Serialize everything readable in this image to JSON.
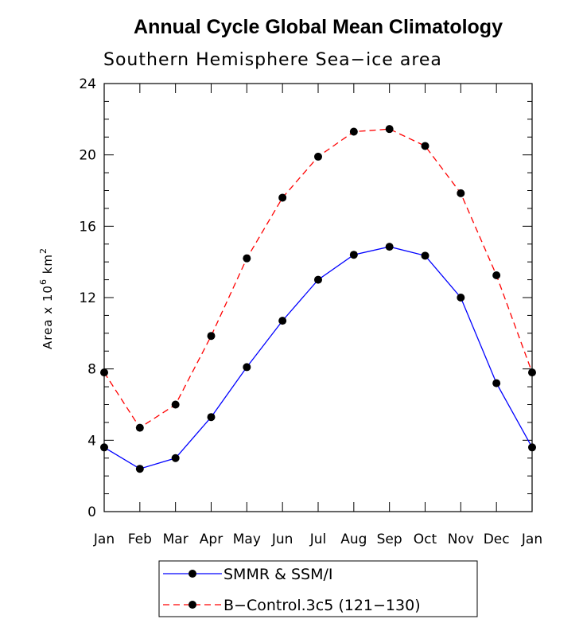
{
  "chart_data": {
    "type": "line",
    "title": "Annual Cycle Global Mean Climatology",
    "subtitle": "Southern Hemisphere Sea−ice area",
    "ylabel": {
      "base": "Area x 10",
      "exp1": "6",
      "unit": " km",
      "exp2": "2"
    },
    "xlabel": "",
    "categories": [
      "Jan",
      "Feb",
      "Mar",
      "Apr",
      "May",
      "Jun",
      "Jul",
      "Aug",
      "Sep",
      "Oct",
      "Nov",
      "Dec",
      "Jan"
    ],
    "ylim": [
      0,
      24
    ],
    "yticks": [
      0,
      4,
      8,
      12,
      16,
      20,
      24
    ],
    "series": [
      {
        "name": "SMMR & SSM/I",
        "color": "#0000ff",
        "dash": "solid",
        "values": [
          3.6,
          2.4,
          3.0,
          5.3,
          8.1,
          10.7,
          13.0,
          14.4,
          14.85,
          14.35,
          12.0,
          7.2,
          3.6
        ]
      },
      {
        "name": "B−Control.3c5 (121−130)",
        "color": "#ff0000",
        "dash": "dashed",
        "values": [
          7.8,
          4.7,
          6.0,
          9.85,
          14.2,
          17.6,
          19.9,
          21.3,
          21.45,
          20.5,
          17.85,
          13.25,
          7.8
        ]
      }
    ],
    "legend_position": "bottom-center"
  }
}
